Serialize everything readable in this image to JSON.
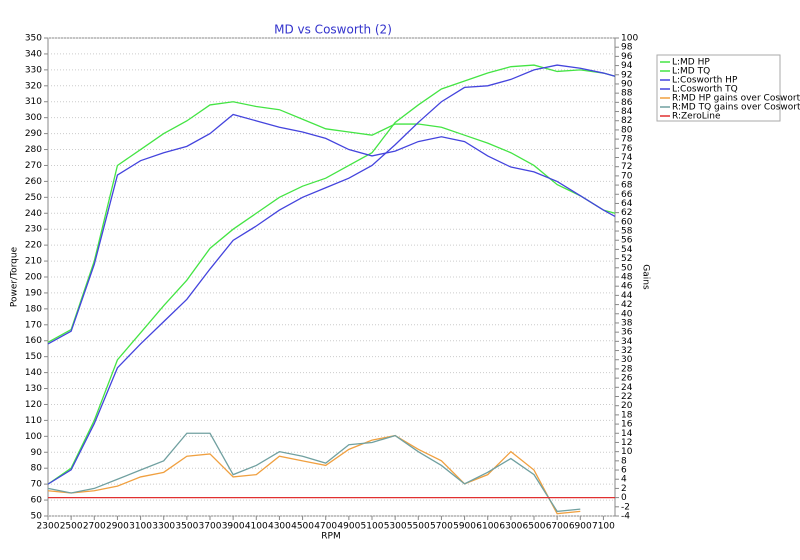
{
  "chart_data": {
    "type": "line",
    "title": "MD vs Cosworth (2)",
    "x_label": "RPM",
    "y_label": "Power/Torque",
    "y2_label": "Gains",
    "x": [
      2300,
      2500,
      2700,
      2900,
      3100,
      3300,
      3500,
      3700,
      3900,
      4100,
      4300,
      4500,
      4700,
      4900,
      5100,
      5300,
      5500,
      5700,
      5900,
      6100,
      6300,
      6500,
      6700,
      6900,
      7100,
      7200
    ],
    "xlim": [
      2300,
      7200
    ],
    "xticks": [
      2300,
      2500,
      2700,
      2900,
      3100,
      3300,
      3500,
      3700,
      3900,
      4100,
      4300,
      4500,
      4700,
      4900,
      5100,
      5300,
      5500,
      5700,
      5900,
      6100,
      6300,
      6500,
      6700,
      6900,
      7100
    ],
    "ylim": [
      50,
      350
    ],
    "yticks": [
      50,
      60,
      70,
      80,
      90,
      100,
      110,
      120,
      130,
      140,
      150,
      160,
      170,
      180,
      190,
      200,
      210,
      220,
      230,
      240,
      250,
      260,
      270,
      280,
      290,
      300,
      310,
      320,
      330,
      340,
      350
    ],
    "y2lim": [
      -4,
      100
    ],
    "y2ticks": [
      -4,
      -2,
      0,
      2,
      4,
      6,
      8,
      10,
      12,
      14,
      16,
      18,
      20,
      22,
      24,
      26,
      28,
      30,
      32,
      34,
      36,
      38,
      40,
      42,
      44,
      46,
      48,
      50,
      52,
      54,
      56,
      58,
      60,
      62,
      64,
      66,
      68,
      70,
      72,
      74,
      76,
      78,
      80,
      82,
      84,
      86,
      88,
      90,
      92,
      94,
      96,
      98,
      100
    ],
    "grid": true,
    "legend": "right",
    "series": [
      {
        "name": "L:MD HP",
        "color": "#44e444",
        "values": [
          70,
          80,
          110,
          148,
          165,
          182,
          198,
          218,
          230,
          240,
          250,
          257,
          262,
          270,
          278,
          297,
          308,
          318,
          323,
          328,
          332,
          333,
          329,
          330,
          328,
          326
        ]
      },
      {
        "name": "L:MD TQ",
        "color": "#44e444",
        "values": [
          159,
          167,
          210,
          270,
          280,
          290,
          298,
          308,
          310,
          307,
          305,
          299,
          293,
          291,
          289,
          296,
          296,
          294,
          289,
          284,
          278,
          270,
          258,
          251,
          242,
          240
        ]
      },
      {
        "name": "L:Cosworth HP",
        "color": "#4444dd",
        "values": [
          70,
          79,
          108,
          143,
          158,
          172,
          186,
          205,
          223,
          232,
          242,
          250,
          256,
          262,
          270,
          283,
          297,
          310,
          319,
          320,
          324,
          330,
          333,
          331,
          328,
          326
        ]
      },
      {
        "name": "L:Cosworth TQ",
        "color": "#4444dd",
        "values": [
          158,
          166,
          208,
          264,
          273,
          278,
          282,
          290,
          302,
          298,
          294,
          291,
          287,
          280,
          276,
          279,
          285,
          288,
          285,
          276,
          269,
          266,
          260,
          251,
          242,
          238
        ]
      },
      {
        "name": "R:MD HP gains over Cosworth",
        "color": "#f0a040",
        "axis": "y2",
        "values": [
          1.5,
          1,
          1.5,
          2.5,
          4.5,
          5.5,
          9,
          9.5,
          4.5,
          5,
          9,
          8,
          7,
          10.5,
          12.5,
          13.5,
          10.5,
          8,
          3,
          5,
          10,
          6,
          -3.5,
          -3,
          null,
          null
        ]
      },
      {
        "name": "R:MD TQ gains over Cosworth",
        "color": "#70a0a0",
        "axis": "y2",
        "values": [
          2,
          1,
          2,
          4,
          6,
          8,
          14,
          14,
          5,
          7,
          10,
          9,
          7.5,
          11.5,
          12,
          13.5,
          10,
          7,
          3,
          5.5,
          8.5,
          5,
          -3,
          -2.5,
          null,
          null
        ]
      },
      {
        "name": "R:ZeroLine",
        "color": "#e03030",
        "axis": "y2",
        "values": [
          0,
          0,
          0,
          0,
          0,
          0,
          0,
          0,
          0,
          0,
          0,
          0,
          0,
          0,
          0,
          0,
          0,
          0,
          0,
          0,
          0,
          0,
          0,
          0,
          0,
          0
        ]
      }
    ]
  }
}
